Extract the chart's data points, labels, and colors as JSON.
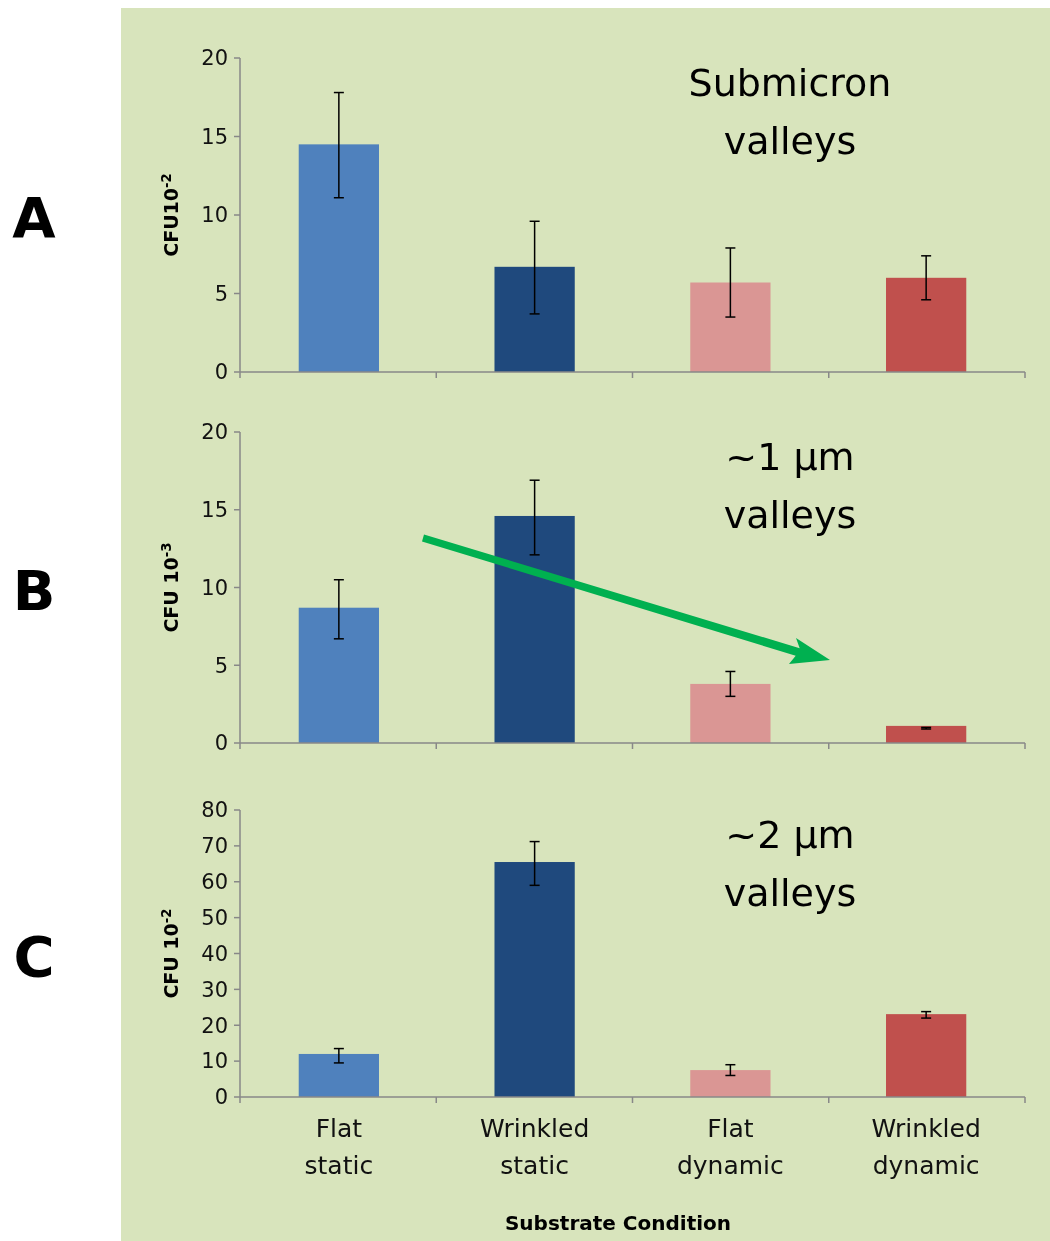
{
  "chart_data": [
    {
      "type": "bar",
      "ylabel": "CFU10$^{-2}$",
      "categories": [
        null,
        null,
        null,
        null
      ],
      "values": [
        14.5,
        6.7,
        5.7,
        6.0
      ],
      "colors": [
        "#4f81bd",
        "#1f497d",
        "#da9694",
        "#c0504d"
      ],
      "errors": [
        [
          11.1,
          17.8
        ],
        [
          3.7,
          9.6
        ],
        [
          3.5,
          7.9
        ],
        [
          4.6,
          7.4
        ]
      ],
      "ylim": [
        0,
        20
      ],
      "yticks": [
        0,
        5,
        10,
        15,
        20
      ],
      "tick_labels": "y",
      "annotations": [
        "A",
        "Submicron\nvalleys"
      ]
    },
    {
      "type": "bar",
      "ylabel": "CFU 10$^{-3}$",
      "categories": [
        null,
        null,
        null,
        null
      ],
      "values": [
        8.7,
        14.6,
        3.8,
        1.1
      ],
      "colors": [
        "#4f81bd",
        "#1f497d",
        "#da9694",
        "#c0504d"
      ],
      "errors": [
        [
          6.7,
          10.5
        ],
        [
          12.1,
          16.9
        ],
        [
          3.0,
          4.6
        ],
        [
          0.9,
          1.0
        ]
      ],
      "ylim": [
        0,
        20
      ],
      "yticks": [
        0,
        5,
        10,
        15,
        20
      ],
      "tick_labels": "y",
      "annotations": [
        "B",
        "~1 µm\nvalleys"
      ]
    },
    {
      "type": "bar",
      "ylabel": "CFU 10$^{-2}$",
      "xlabel": "Substrate Condition",
      "categories": [
        "Flat\nstatic",
        "Wrinkled\nstatic",
        "Flat\ndynamic",
        "Wrinkled\ndynamic"
      ],
      "values": [
        12.0,
        65.5,
        7.5,
        23.1
      ],
      "colors": [
        "#4f81bd",
        "#1f497d",
        "#da9694",
        "#c0504d"
      ],
      "errors": [
        [
          9.5,
          13.5
        ],
        [
          59.0,
          71.2
        ],
        [
          6.0,
          9.0
        ],
        [
          22.0,
          23.8
        ]
      ],
      "ylim": [
        0,
        80
      ],
      "yticks": [
        0,
        10,
        20,
        30,
        40,
        50,
        60,
        70,
        80
      ],
      "annotations": [
        "C",
        "~2 µm\nvalleys"
      ]
    }
  ]
}
